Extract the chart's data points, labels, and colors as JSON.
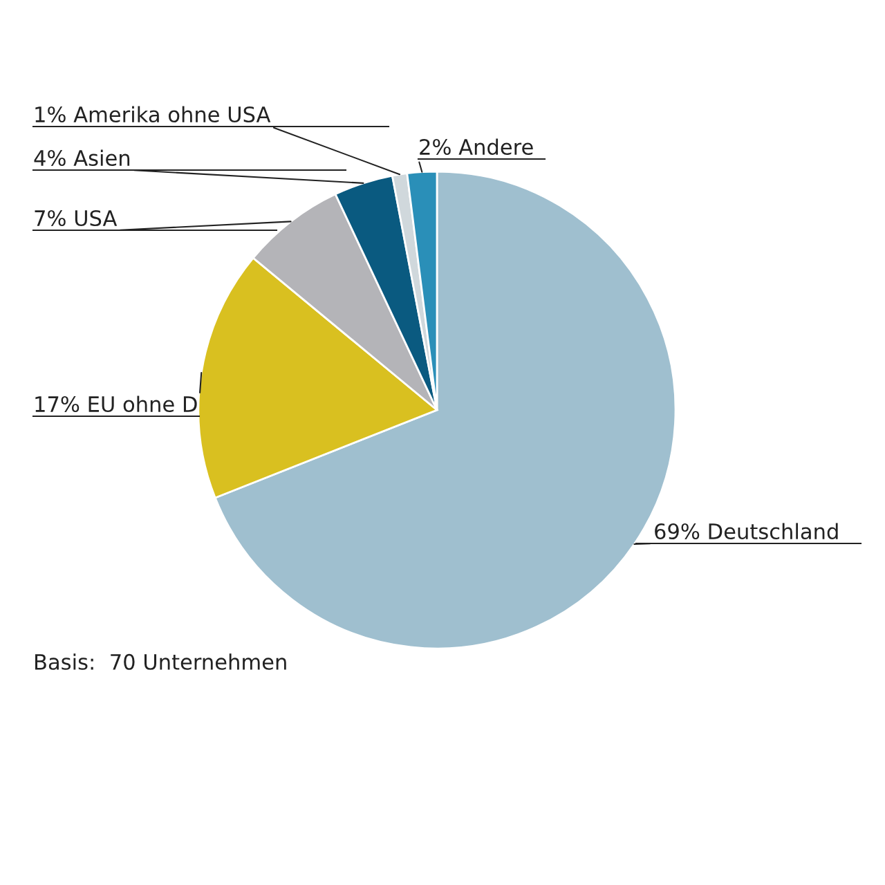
{
  "chart_data": {
    "type": "pie",
    "categories": [
      "Deutschland",
      "EU ohne D",
      "USA",
      "Asien",
      "Amerika ohne USA",
      "Andere"
    ],
    "values": [
      69,
      17,
      7,
      4,
      1,
      2
    ],
    "value_labels": [
      "69%",
      "17%",
      "7%",
      "4%",
      "1%",
      "2%"
    ],
    "colors": [
      "#9fbfcf",
      "#d9c020",
      "#b4b4b8",
      "#0a5a80",
      "#d0d8dc",
      "#2a8fb8"
    ],
    "annotations": [
      "Basis:  70 Unternehmen"
    ],
    "legend": false
  }
}
